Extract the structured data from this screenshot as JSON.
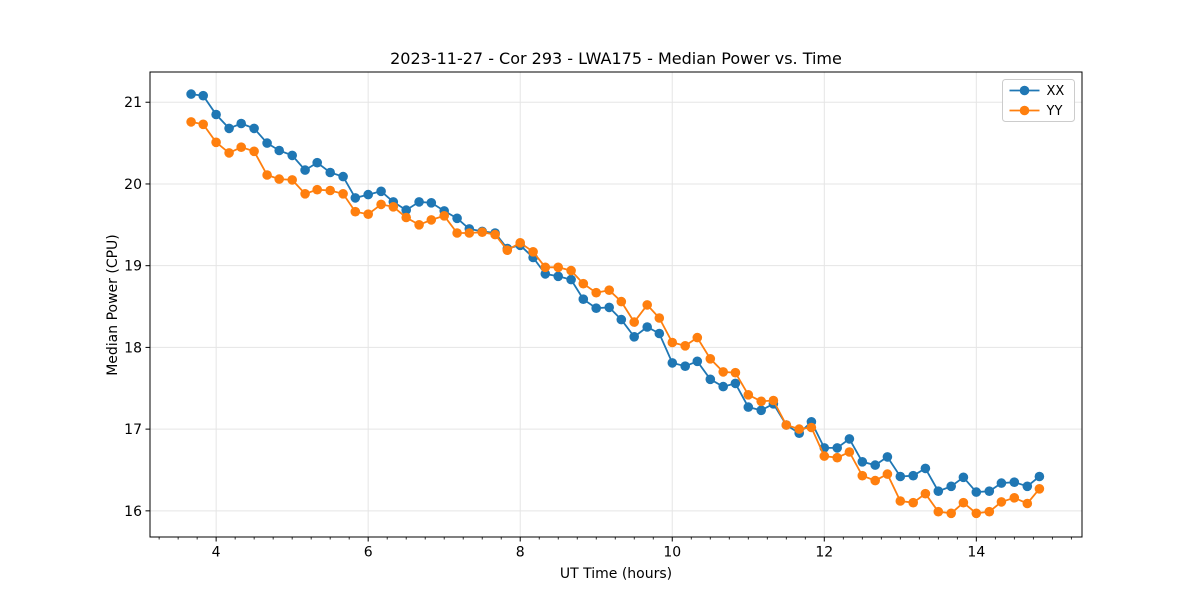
{
  "figure": {
    "title": "2023-11-27 - Cor 293 - LWA175 - Median Power vs. Time",
    "xlabel": "UT Time (hours)",
    "ylabel": "Median Power (CPU)"
  },
  "legend": {
    "entries": [
      "XX",
      "YY"
    ],
    "position": "upper right"
  },
  "colors": {
    "series_xx": "#1f77b4",
    "series_yy": "#ff7f0e",
    "grid": "#e5e5e5",
    "spine": "#000000",
    "legend_border": "#cccccc"
  },
  "chart_data": {
    "type": "line",
    "title": "2023-11-27 - Cor 293 - LWA175 - Median Power vs. Time",
    "xlabel": "UT Time (hours)",
    "ylabel": "Median Power (CPU)",
    "legend_position": "upper right",
    "grid": true,
    "marker": "circle",
    "xlim": [
      3.13,
      15.39
    ],
    "ylim": [
      15.68,
      21.37
    ],
    "x_major_ticks": [
      4,
      6,
      8,
      10,
      12,
      14
    ],
    "x_minor_tick_step": 0.25,
    "y_major_ticks": [
      16,
      17,
      18,
      19,
      20,
      21
    ],
    "x": [
      3.67,
      3.83,
      4.0,
      4.17,
      4.33,
      4.5,
      4.67,
      4.83,
      5.0,
      5.17,
      5.33,
      5.5,
      5.67,
      5.83,
      6.0,
      6.17,
      6.33,
      6.5,
      6.67,
      6.83,
      7.0,
      7.17,
      7.33,
      7.5,
      7.67,
      7.83,
      8.0,
      8.17,
      8.33,
      8.5,
      8.67,
      8.83,
      9.0,
      9.17,
      9.33,
      9.5,
      9.67,
      9.83,
      10.0,
      10.17,
      10.33,
      10.5,
      10.67,
      10.83,
      11.0,
      11.17,
      11.33,
      11.5,
      11.67,
      11.83,
      12.0,
      12.17,
      12.33,
      12.5,
      12.67,
      12.83,
      13.0,
      13.17,
      13.33,
      13.5,
      13.67,
      13.83,
      14.0,
      14.17,
      14.33,
      14.5,
      14.67,
      14.83
    ],
    "series": [
      {
        "name": "XX",
        "color": "#1f77b4",
        "values": [
          21.1,
          21.08,
          20.85,
          20.68,
          20.74,
          20.68,
          20.5,
          20.41,
          20.35,
          20.17,
          20.26,
          20.14,
          20.09,
          19.83,
          19.87,
          19.91,
          19.78,
          19.68,
          19.78,
          19.77,
          19.67,
          19.58,
          19.45,
          19.42,
          19.4,
          19.21,
          19.25,
          19.1,
          18.9,
          18.87,
          18.83,
          18.59,
          18.48,
          18.49,
          18.34,
          18.13,
          18.25,
          18.17,
          17.81,
          17.77,
          17.83,
          17.61,
          17.52,
          17.56,
          17.27,
          17.23,
          17.31,
          17.05,
          16.95,
          17.09,
          16.77,
          16.77,
          16.88,
          16.6,
          16.56,
          16.66,
          16.42,
          16.43,
          16.52,
          16.24,
          16.3,
          16.41,
          16.23,
          16.24,
          16.34,
          16.35,
          16.3,
          16.42
        ]
      },
      {
        "name": "YY",
        "color": "#ff7f0e",
        "values": [
          20.76,
          20.73,
          20.51,
          20.38,
          20.45,
          20.4,
          20.11,
          20.06,
          20.05,
          19.88,
          19.93,
          19.92,
          19.88,
          19.66,
          19.63,
          19.75,
          19.72,
          19.59,
          19.5,
          19.56,
          19.61,
          19.4,
          19.4,
          19.41,
          19.38,
          19.19,
          19.28,
          19.17,
          18.98,
          18.98,
          18.94,
          18.78,
          18.67,
          18.7,
          18.56,
          18.31,
          18.52,
          18.36,
          18.06,
          18.02,
          18.12,
          17.86,
          17.7,
          17.69,
          17.42,
          17.34,
          17.35,
          17.05,
          17.0,
          17.02,
          16.67,
          16.65,
          16.72,
          16.43,
          16.37,
          16.45,
          16.12,
          16.1,
          16.21,
          15.99,
          15.97,
          16.1,
          15.97,
          15.99,
          16.11,
          16.16,
          16.09,
          16.27
        ]
      }
    ]
  }
}
